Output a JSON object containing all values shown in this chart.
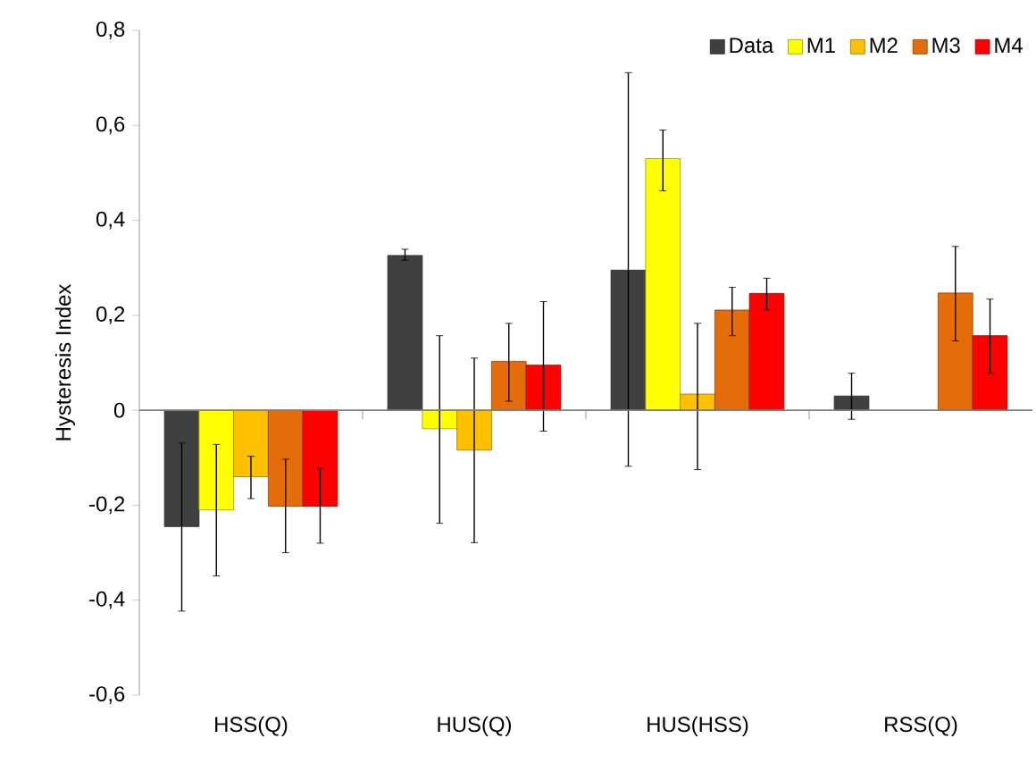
{
  "chart_data": {
    "type": "bar",
    "ylabel": "Hysteresis Index",
    "categories": [
      "HSS(Q)",
      "HUS(Q)",
      "HUS(HSS)",
      "RSS(Q)"
    ],
    "series": [
      {
        "name": "Data",
        "color": "#404040",
        "values": [
          -0.245,
          0.326,
          0.295,
          0.03
        ],
        "errors": [
          [
            -0.423,
            -0.069
          ],
          [
            0.316,
            0.339
          ],
          [
            -0.118,
            0.711
          ],
          [
            -0.019,
            0.078
          ]
        ]
      },
      {
        "name": "M1",
        "color": "#ffff00",
        "values": [
          -0.21,
          -0.039,
          0.53,
          null
        ],
        "errors": [
          [
            -0.349,
            -0.072
          ],
          [
            -0.238,
            0.157
          ],
          [
            0.462,
            0.59
          ],
          null
        ]
      },
      {
        "name": "M2",
        "color": "#ffc000",
        "values": [
          -0.14,
          -0.084,
          0.034,
          null
        ],
        "errors": [
          [
            -0.186,
            -0.097
          ],
          [
            -0.279,
            0.11
          ],
          [
            -0.125,
            0.183
          ],
          null
        ]
      },
      {
        "name": "M3",
        "color": "#e46c0a",
        "values": [
          -0.202,
          0.103,
          0.211,
          0.247
        ],
        "errors": [
          [
            -0.3,
            -0.103
          ],
          [
            0.019,
            0.183
          ],
          [
            0.157,
            0.259
          ],
          [
            0.146,
            0.345
          ]
        ]
      },
      {
        "name": "M4",
        "color": "#ff0000",
        "values": [
          -0.202,
          0.095,
          0.246,
          0.157
        ],
        "errors": [
          [
            -0.28,
            -0.122
          ],
          [
            -0.044,
            0.229
          ],
          [
            0.211,
            0.278
          ],
          [
            0.078,
            0.234
          ]
        ]
      }
    ],
    "ylim": [
      -0.6,
      0.8
    ],
    "yticks": [
      {
        "value": -0.6,
        "label": "-0,6"
      },
      {
        "value": -0.4,
        "label": "-0,4"
      },
      {
        "value": -0.2,
        "label": "-0,2"
      },
      0,
      {
        "value": 0.2,
        "label": "0,2"
      },
      {
        "value": 0.4,
        "label": "0,4"
      },
      {
        "value": 0.6,
        "label": "0,6"
      },
      {
        "value": 0.8,
        "label": "0,8"
      }
    ],
    "legend": "top right"
  }
}
